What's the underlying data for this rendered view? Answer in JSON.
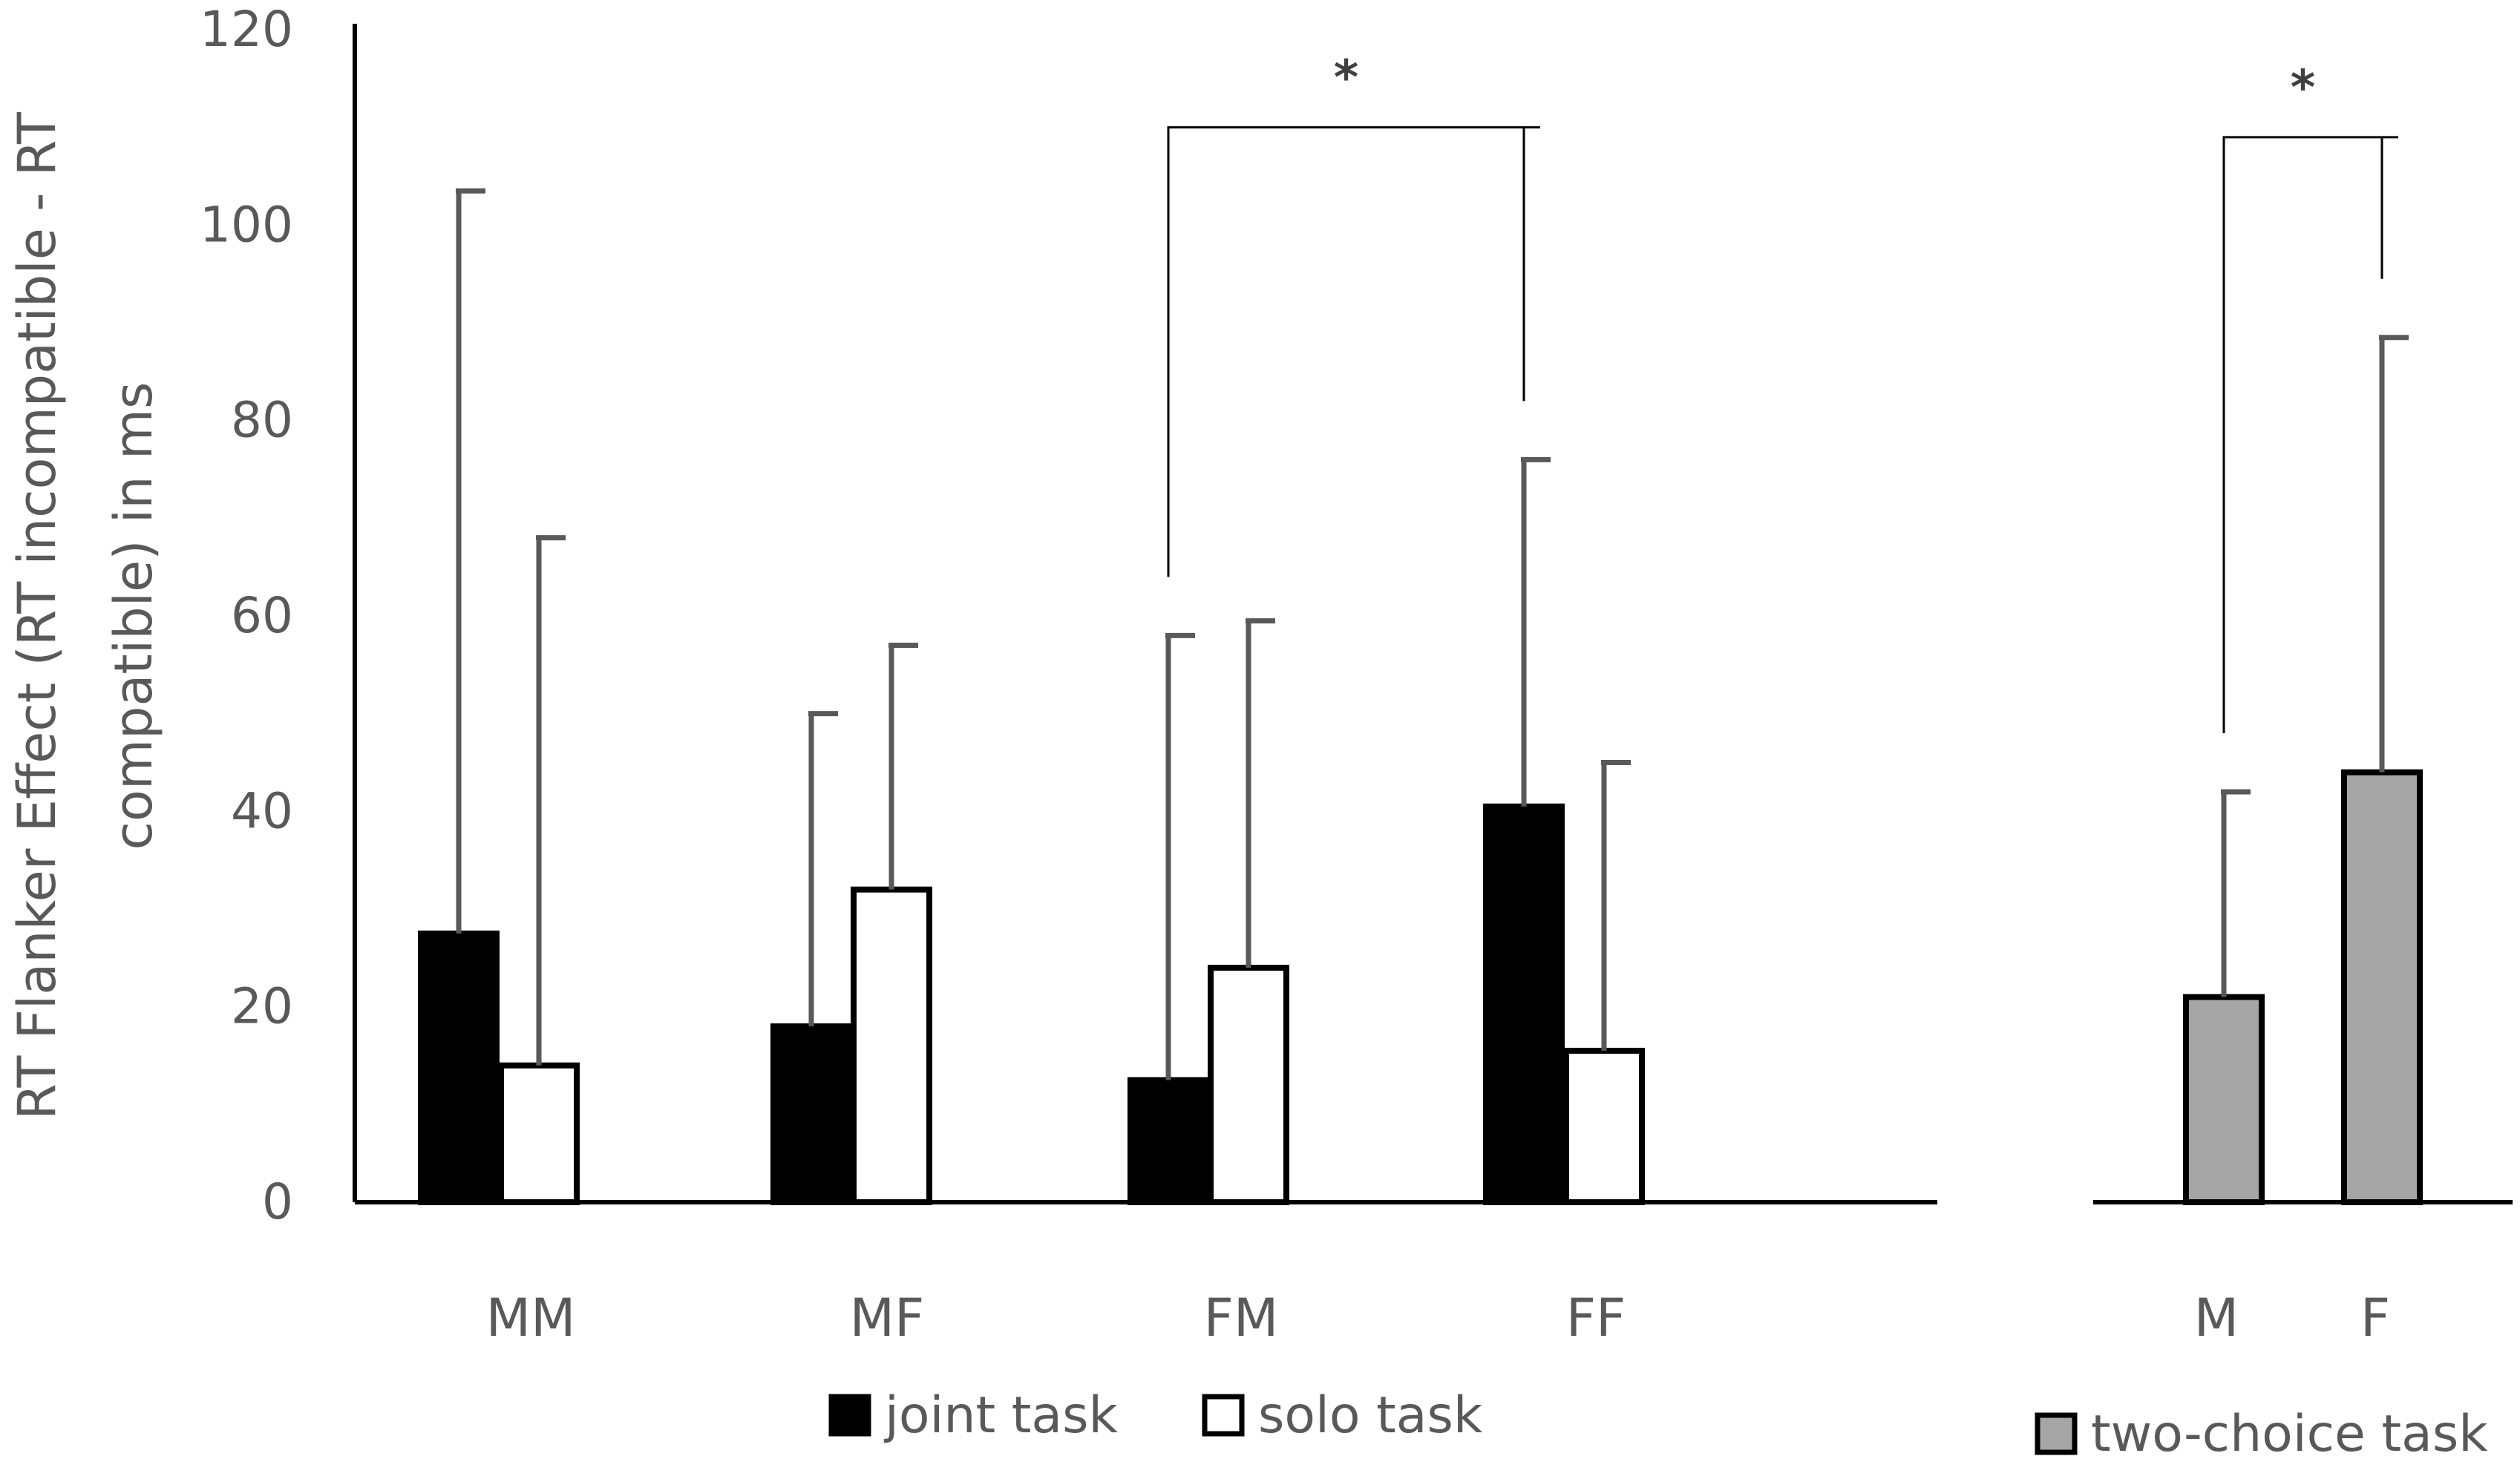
{
  "chart_data": {
    "type": "bar",
    "ylabel": "RT Flanker Effect (RT incompatible - RT compatible) in ms",
    "ylabel_lines": [
      "RT Flanker Effect (RT incompatible - RT",
      "compatible) in ms"
    ],
    "ylim": [
      0,
      120
    ],
    "yticks": [
      0,
      20,
      40,
      60,
      80,
      100,
      120
    ],
    "grid": false,
    "panels": [
      {
        "categories": [
          "MM",
          "MF",
          "FM",
          "FF"
        ],
        "series": [
          {
            "name": "joint task",
            "color": "#000000",
            "values": [
              27.5,
              18,
              12.5,
              40.5
            ],
            "error": [
              76,
              32,
              45.5,
              35.5
            ]
          },
          {
            "name": "solo task",
            "color": "#ffffff",
            "values": [
              14,
              32,
              24,
              15.5
            ],
            "error": [
              54,
              25,
              35.5,
              29.5
            ]
          }
        ],
        "annotations": [
          {
            "text": "*",
            "from": {
              "category": "FM",
              "series": "joint task"
            },
            "to": {
              "category": "FF",
              "series": "joint task"
            },
            "y": 110
          }
        ]
      },
      {
        "categories": [
          "M",
          "F"
        ],
        "series": [
          {
            "name": "two-choice task",
            "color": "#a6a6a6",
            "values": [
              21,
              44
            ],
            "error": [
              21,
              44.5
            ]
          }
        ],
        "annotations": [
          {
            "text": "*",
            "from": {
              "category": "M",
              "series": "two-choice task"
            },
            "to": {
              "category": "F",
              "series": "two-choice task"
            },
            "y": 109
          }
        ]
      }
    ],
    "legend": [
      {
        "label": "joint task",
        "color": "#000000",
        "placement": "bottom-center"
      },
      {
        "label": "solo task",
        "color": "#ffffff",
        "placement": "bottom-center"
      },
      {
        "label": "two-choice task",
        "color": "#a6a6a6",
        "placement": "bottom-right"
      }
    ]
  }
}
